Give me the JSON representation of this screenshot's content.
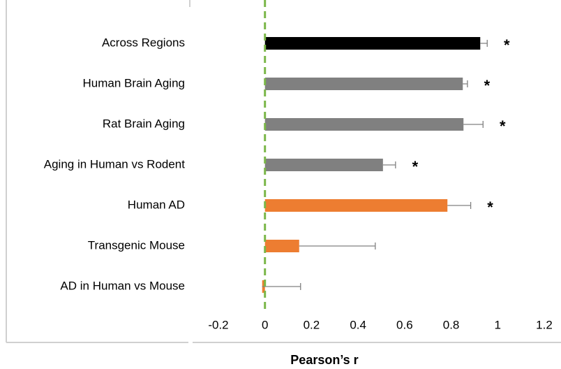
{
  "chart_data": {
    "type": "bar",
    "orientation": "horizontal",
    "xlabel": "Pearson’s r",
    "categories": [
      "Across Regions",
      "Human Brain Aging",
      "Rat Brain Aging",
      "Aging in Human vs Rodent",
      "Human AD",
      "Transgenic Mouse",
      "AD in Human vs Mouse"
    ],
    "values": [
      0.925,
      0.85,
      0.853,
      0.507,
      0.784,
      0.147,
      -0.012
    ],
    "errors": [
      0.03,
      0.02,
      0.084,
      0.054,
      0.1,
      0.327,
      0.165
    ],
    "colors": [
      "#000000",
      "#808080",
      "#808080",
      "#808080",
      "#ed7d31",
      "#ed7d31",
      "#ed7d31"
    ],
    "significance": [
      "*",
      "*",
      "*",
      "*",
      "*",
      null,
      null
    ],
    "xlim": [
      -0.2,
      1.2
    ],
    "xticks": [
      -0.2,
      0,
      0.2,
      0.4,
      0.6,
      0.8,
      1,
      1.2
    ],
    "reference_line": {
      "value": 0,
      "color": "#7ab648"
    }
  }
}
